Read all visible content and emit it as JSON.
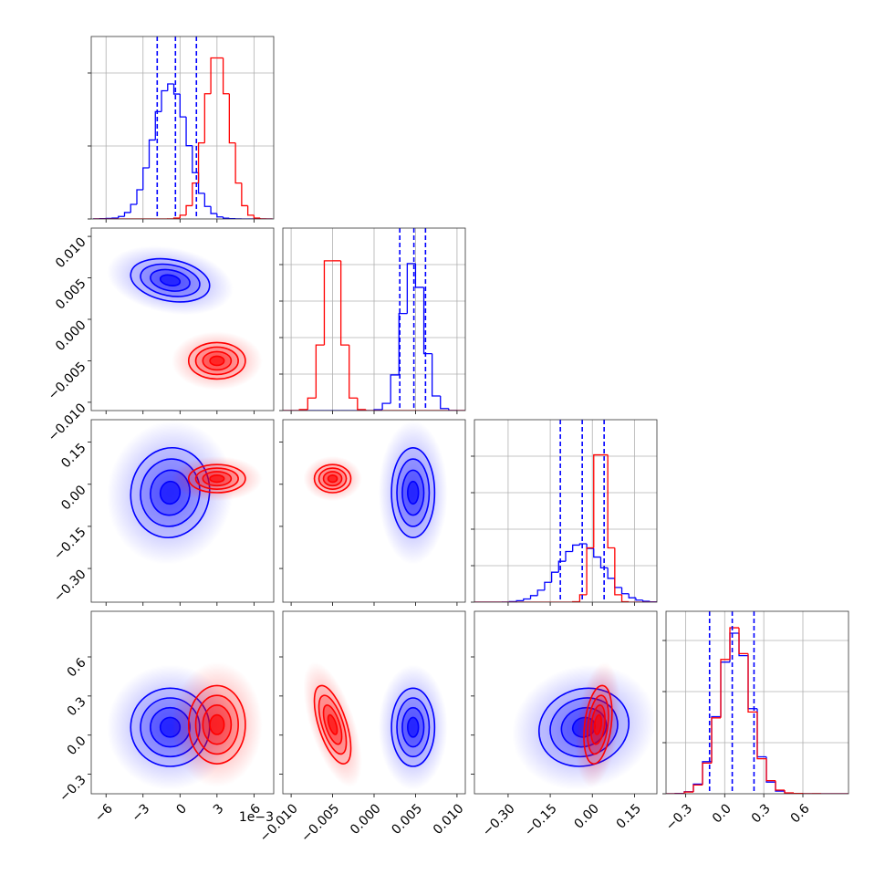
{
  "chart_data": {
    "type": "corner",
    "offset_label": "1e−3",
    "hist_grid": true,
    "series": [
      {
        "color": "#0000ff",
        "mean": [
          -0.8,
          0.0047,
          -0.03,
          0.06
        ],
        "sd": [
          1.6,
          0.0013,
          0.08,
          0.15
        ],
        "corr": [
          -0.25,
          0.05,
          0.0,
          0.0,
          0.0,
          0.1
        ]
      },
      {
        "color": "#ff0000",
        "mean": [
          3.0,
          -0.005,
          0.02,
          0.08
        ],
        "sd": [
          1.15,
          0.0011,
          0.025,
          0.15
        ],
        "corr": [
          0.0,
          0.0,
          0.0,
          0.0,
          -0.6,
          0.3
        ]
      }
    ],
    "variables": [
      {
        "lim": [
          -7.2,
          7.6
        ],
        "ticks": [
          {
            "value": -6,
            "label": "−6"
          },
          {
            "value": -3,
            "label": "−3"
          },
          0,
          3,
          6
        ],
        "bins": [
          -7,
          -6.5,
          -6,
          -5.5,
          -5,
          -4.5,
          -4,
          -3.5,
          -3,
          -2.5,
          -2,
          -1.5,
          -1,
          -0.5,
          0,
          0.5,
          1,
          1.5,
          2,
          2.5,
          3,
          3.5,
          4,
          4.5,
          5,
          5.5,
          6,
          6.5,
          7,
          7.5
        ],
        "counts": [
          [
            1,
            2,
            4,
            6,
            17,
            44,
            100,
            200,
            350,
            541,
            735,
            878,
            925,
            856,
            699,
            502,
            317,
            176,
            86,
            37,
            14,
            5,
            2,
            1,
            0,
            0,
            0,
            0,
            0
          ],
          [
            0,
            0,
            0,
            0,
            0,
            0,
            0,
            0,
            0,
            0,
            0,
            0,
            1,
            6,
            26,
            91,
            246,
            521,
            858,
            1103,
            1103,
            858,
            521,
            246,
            91,
            26,
            6,
            1,
            0
          ]
        ],
        "hist_ylim": [
          0,
          1250
        ],
        "hist_yticks": [
          0,
          500,
          1000
        ],
        "quantiles": [
          -1.85,
          -0.37,
          1.33
        ]
      },
      {
        "lim": [
          -0.011,
          0.011
        ],
        "ticks": [
          {
            "value": -0.01,
            "label": "−0.010"
          },
          {
            "value": -0.005,
            "label": "−0.005"
          },
          {
            "value": 0,
            "label": "0.000"
          },
          0.005,
          {
            "value": 0.01,
            "label": "0.010"
          }
        ],
        "bins": [
          -0.011,
          -0.01,
          -0.009,
          -0.008,
          -0.007,
          -0.006,
          -0.005,
          -0.004,
          -0.003,
          -0.002,
          -0.001,
          0,
          0.001,
          0.002,
          0.003,
          0.004,
          0.005,
          0.006,
          0.007,
          0.008,
          0.009,
          0.01,
          0.011
        ],
        "counts": [
          [
            0,
            0,
            0,
            0,
            0,
            0,
            0,
            0,
            0,
            0,
            0,
            6,
            49,
            244,
            665,
            1007,
            844,
            390,
            100,
            14,
            1,
            0
          ],
          [
            0,
            0,
            7,
            86,
            449,
            1026,
            1026,
            449,
            86,
            7,
            0,
            0,
            0,
            0,
            0,
            0,
            0,
            0,
            0,
            0,
            0,
            0
          ]
        ],
        "hist_ylim": [
          0,
          1250
        ],
        "hist_yticks": [
          0,
          250,
          500,
          750,
          1000
        ],
        "quantiles": [
          0.0031,
          0.0048,
          0.0062
        ]
      },
      {
        "lim": [
          -0.42,
          0.23
        ],
        "ticks": [
          {
            "value": -0.3,
            "label": "−0.30"
          },
          {
            "value": -0.15,
            "label": "−0.15"
          },
          {
            "value": 0,
            "label": "0.00"
          },
          0.15
        ],
        "bins": [
          -0.42,
          -0.395,
          -0.37,
          -0.345,
          -0.32,
          -0.295,
          -0.27,
          -0.245,
          -0.22,
          -0.195,
          -0.17,
          -0.145,
          -0.12,
          -0.095,
          -0.07,
          -0.045,
          -0.02,
          0.005,
          0.03,
          0.055,
          0.08,
          0.105,
          0.13,
          0.155,
          0.18,
          0.205,
          0.23
        ],
        "counts": [
          [
            0,
            0,
            0,
            0,
            1,
            4,
            10,
            22,
            45,
            82,
            136,
            205,
            280,
            347,
            391,
            400,
            368,
            309,
            235,
            163,
            101,
            58,
            30,
            14,
            6,
            2
          ],
          [
            0,
            0,
            0,
            0,
            0,
            0,
            0,
            0,
            0,
            0,
            0,
            0,
            0,
            0,
            3,
            51,
            372,
            1009,
            1009,
            372,
            51,
            3,
            0,
            0,
            0,
            0
          ]
        ],
        "hist_ylim": [
          0,
          1250
        ],
        "hist_yticks": [
          0,
          250,
          500,
          750,
          1000
        ],
        "quantiles": [
          -0.114,
          -0.036,
          0.042
        ]
      },
      {
        "lim": [
          -0.45,
          0.95
        ],
        "ticks": [
          {
            "value": -0.3,
            "label": "−0.3"
          },
          {
            "value": 0,
            "label": "0.0"
          },
          0.3,
          0.6
        ],
        "bins": [
          -0.45,
          -0.38,
          -0.31,
          -0.24,
          -0.17,
          -0.1,
          -0.03,
          0.04,
          0.11,
          0.18,
          0.25,
          0.32,
          0.39,
          0.46,
          0.53,
          0.6,
          0.67,
          0.74,
          0.81,
          0.88,
          0.95
        ],
        "counts": [
          [
            0,
            2,
            14,
            66,
            220,
            528,
            902,
            1100,
            946,
            583,
            253,
            80,
            18,
            3,
            1,
            0,
            0,
            0,
            0,
            0
          ],
          [
            0,
            1,
            12,
            60,
            210,
            520,
            920,
            1137,
            960,
            560,
            240,
            90,
            25,
            6,
            2,
            1,
            1,
            0,
            0,
            0
          ]
        ],
        "hist_ylim": [
          0,
          1250
        ],
        "hist_yticks": [
          0,
          350,
          700,
          1050
        ],
        "quantiles": [
          -0.116,
          0.058,
          0.225
        ]
      }
    ]
  }
}
